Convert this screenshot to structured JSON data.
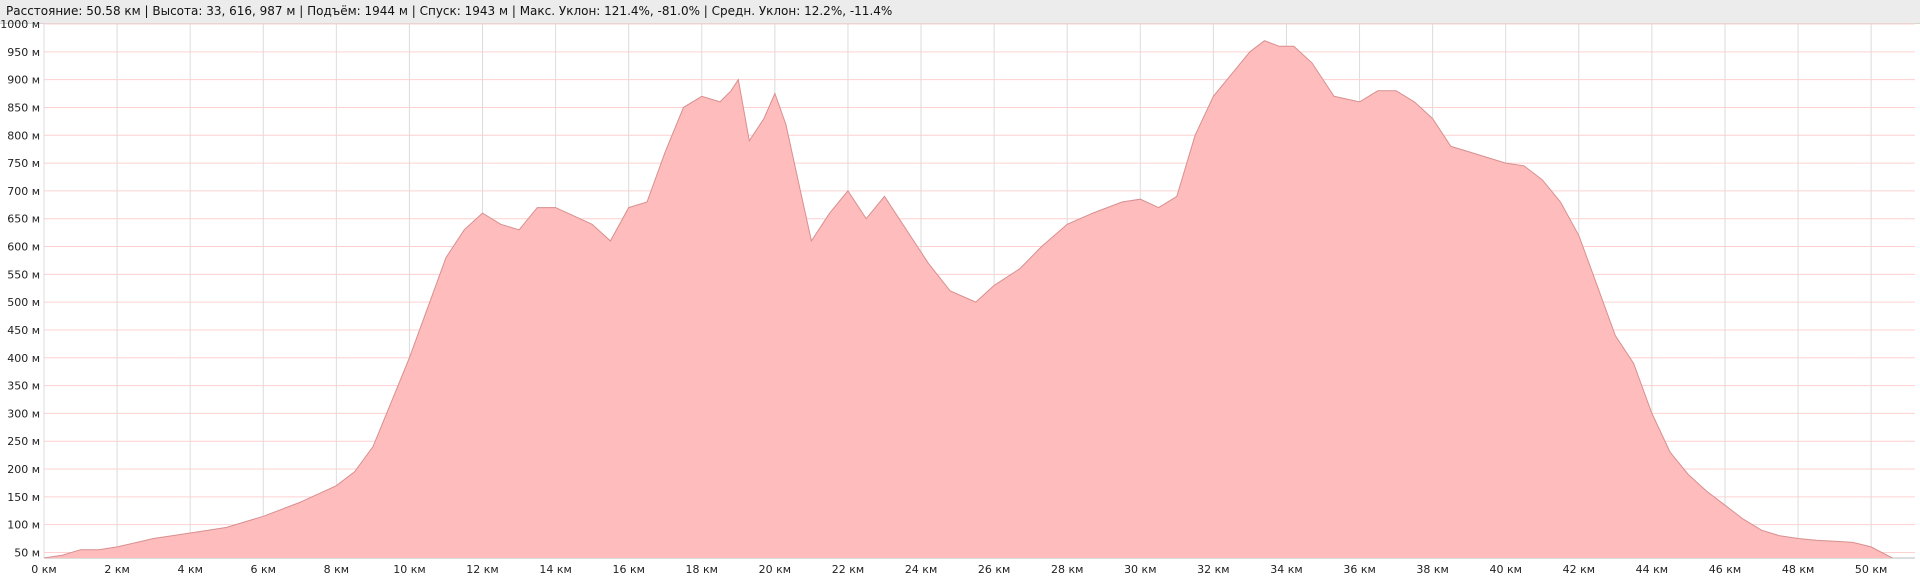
{
  "stats_bar": {
    "text": "Расстояние: 50.58 км | Высота: 33, 616, 987 м | Подъём: 1944 м | Спуск: 1943 м | Макс. Уклон: 121.4%, -81.0% | Средн. Уклон: 12.2%, -11.4%"
  },
  "colors": {
    "fill": "#ffbcbc",
    "line": "#d88f8f",
    "grid": "#ffd0d0",
    "vgrid": "#dcdcdc"
  },
  "chart_data": {
    "type": "area",
    "xlabel": "",
    "ylabel": "",
    "xlim": [
      0,
      51.2
    ],
    "ylim": [
      40,
      1000
    ],
    "grid": true,
    "x_ticks": [
      "0 км",
      "2 км",
      "4 км",
      "6 км",
      "8 км",
      "10 км",
      "12 км",
      "14 км",
      "16 км",
      "18 км",
      "20 км",
      "22 км",
      "24 км",
      "26 км",
      "28 км",
      "30 км",
      "32 км",
      "34 км",
      "36 км",
      "38 км",
      "40 км",
      "42 км",
      "44 км",
      "46 км",
      "48 км",
      "50 км"
    ],
    "y_ticks": [
      "50 м",
      "100 м",
      "150 м",
      "200 м",
      "250 м",
      "300 м",
      "350 м",
      "400 м",
      "450 м",
      "500 м",
      "550 м",
      "600 м",
      "650 м",
      "700 м",
      "750 м",
      "800 м",
      "850 м",
      "900 м",
      "950 м",
      "1000 м"
    ],
    "x": [
      0,
      0.5,
      1.0,
      1.5,
      2.0,
      3.0,
      4.0,
      5.0,
      6.0,
      7.0,
      8.0,
      8.5,
      9.0,
      9.5,
      10.0,
      10.5,
      11.0,
      11.5,
      12.0,
      12.5,
      13.0,
      13.5,
      14.0,
      14.5,
      15.0,
      15.5,
      16.0,
      16.5,
      17.0,
      17.5,
      18.0,
      18.5,
      18.8,
      19.0,
      19.3,
      19.7,
      20.0,
      20.3,
      20.7,
      21.0,
      21.5,
      22.0,
      22.5,
      23.0,
      23.4,
      23.8,
      24.2,
      24.8,
      25.5,
      26.0,
      26.7,
      27.3,
      28.0,
      28.7,
      29.5,
      30.0,
      30.5,
      31.0,
      31.5,
      32.0,
      32.5,
      33.0,
      33.4,
      33.8,
      34.2,
      34.7,
      35.3,
      36.0,
      36.5,
      37.0,
      37.5,
      38.0,
      38.5,
      39.0,
      39.5,
      40.0,
      40.5,
      41.0,
      41.5,
      42.0,
      42.5,
      43.0,
      43.5,
      44.0,
      44.5,
      45.0,
      45.5,
      46.0,
      46.5,
      47.0,
      47.5,
      48.0,
      48.5,
      49.0,
      49.5,
      50.0,
      50.58
    ],
    "y": [
      33,
      45,
      55,
      55,
      60,
      75,
      85,
      95,
      115,
      140,
      170,
      195,
      240,
      320,
      400,
      490,
      580,
      630,
      660,
      640,
      630,
      670,
      670,
      655,
      640,
      610,
      670,
      680,
      770,
      850,
      870,
      860,
      880,
      900,
      790,
      830,
      875,
      820,
      700,
      610,
      660,
      700,
      650,
      690,
      650,
      610,
      570,
      520,
      500,
      530,
      560,
      600,
      640,
      660,
      680,
      685,
      670,
      690,
      800,
      870,
      910,
      950,
      970,
      960,
      960,
      930,
      870,
      860,
      880,
      880,
      860,
      830,
      780,
      770,
      760,
      750,
      745,
      720,
      680,
      620,
      530,
      440,
      390,
      300,
      230,
      190,
      160,
      135,
      110,
      90,
      80,
      75,
      72,
      70,
      68,
      60,
      33
    ]
  }
}
